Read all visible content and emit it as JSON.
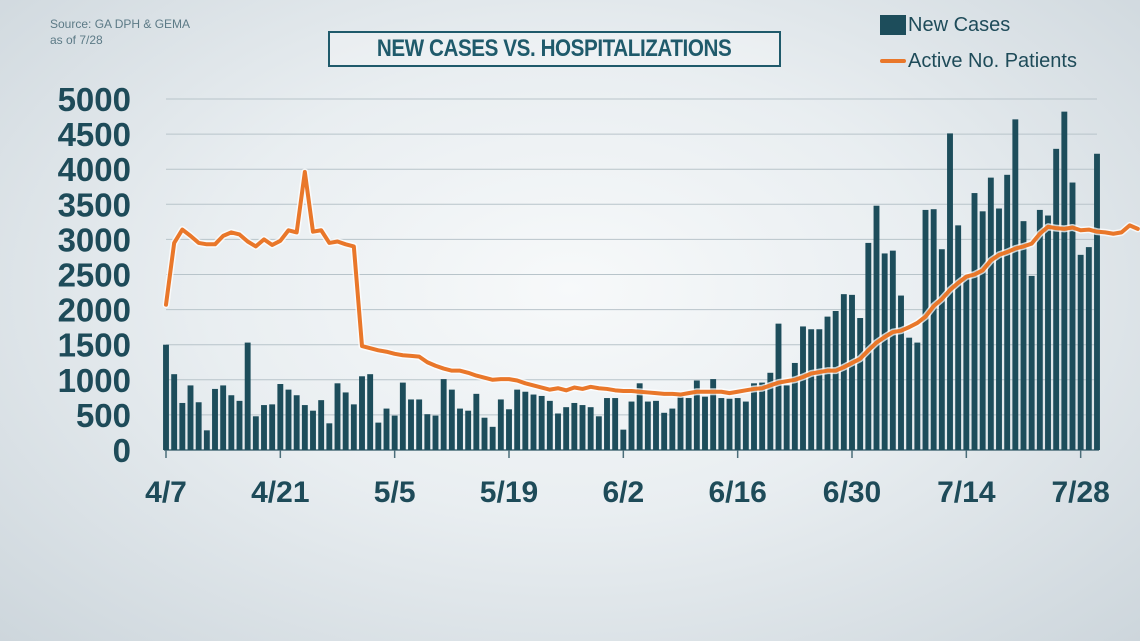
{
  "source_line1": "Source: GA DPH & GEMA",
  "source_line2": "as of 7/28",
  "title": "NEW CASES VS. HOSPITALIZATIONS",
  "legend": {
    "bars_label": "New Cases",
    "line_label": "Active No. Patients"
  },
  "colors": {
    "bars": "#1d4d5b",
    "line": "#e9772a",
    "text": "#1e4b59",
    "grid": "#b8c4ca"
  },
  "chart_data": {
    "type": "bar",
    "title": "NEW CASES VS. HOSPITALIZATIONS",
    "xlabel": "",
    "ylabel": "",
    "ylim": [
      0,
      5000
    ],
    "yticks": [
      0,
      500,
      1000,
      1500,
      2000,
      2500,
      3000,
      3500,
      4000,
      4500,
      5000
    ],
    "xtick_labels": [
      "4/7",
      "4/21",
      "5/5",
      "5/19",
      "6/2",
      "6/16",
      "6/30",
      "7/14",
      "7/28"
    ],
    "grid": true,
    "legend_position": "top-right",
    "x_start": "4/7",
    "x_end": "7/28",
    "series": [
      {
        "name": "New Cases",
        "kind": "bar",
        "values": [
          1500,
          1080,
          670,
          920,
          680,
          280,
          870,
          920,
          780,
          700,
          1530,
          480,
          640,
          650,
          940,
          860,
          780,
          640,
          560,
          710,
          380,
          950,
          820,
          650,
          1050,
          1080,
          390,
          590,
          490,
          960,
          720,
          720,
          510,
          490,
          1010,
          860,
          590,
          560,
          800,
          460,
          330,
          720,
          580,
          860,
          830,
          790,
          770,
          700,
          520,
          610,
          670,
          640,
          610,
          480,
          740,
          740,
          290,
          690,
          950,
          690,
          700,
          530,
          590,
          760,
          740,
          990,
          760,
          1010,
          740,
          730,
          740,
          690,
          950,
          960,
          1100,
          1800,
          920,
          1240,
          1760,
          1720,
          1720,
          1900,
          1980,
          2220,
          2210,
          1880,
          2950,
          3480,
          2800,
          2840,
          2200,
          1600,
          1530,
          3420,
          3430,
          2860,
          4510,
          3200,
          2490,
          3660,
          3400,
          3880,
          3440,
          3920,
          4710,
          3260,
          2480,
          3420,
          3340,
          4290,
          4820,
          3810,
          2780,
          2890,
          4220
        ]
      },
      {
        "name": "Active No. Patients",
        "kind": "line",
        "values": [
          2070,
          2950,
          3140,
          3050,
          2950,
          2930,
          2930,
          3050,
          3100,
          3070,
          2970,
          2900,
          3000,
          2920,
          2980,
          3130,
          3100,
          3960,
          3110,
          3130,
          2950,
          2970,
          2930,
          2900,
          1480,
          1450,
          1420,
          1400,
          1370,
          1350,
          1340,
          1330,
          1250,
          1200,
          1160,
          1130,
          1130,
          1100,
          1060,
          1030,
          1000,
          1010,
          1010,
          990,
          950,
          920,
          890,
          860,
          880,
          850,
          890,
          870,
          900,
          880,
          870,
          850,
          840,
          840,
          830,
          820,
          810,
          800,
          800,
          790,
          810,
          830,
          830,
          830,
          830,
          810,
          830,
          850,
          870,
          880,
          920,
          960,
          980,
          1000,
          1040,
          1090,
          1110,
          1130,
          1130,
          1180,
          1240,
          1300,
          1420,
          1530,
          1610,
          1680,
          1700,
          1750,
          1810,
          1900,
          2050,
          2150,
          2280,
          2380,
          2470,
          2500,
          2560,
          2700,
          2780,
          2820,
          2870,
          2900,
          2940,
          3080,
          3180,
          3160,
          3150,
          3170,
          3130,
          3140,
          3110,
          3100,
          3080,
          3100,
          3200,
          3150
        ]
      }
    ]
  }
}
